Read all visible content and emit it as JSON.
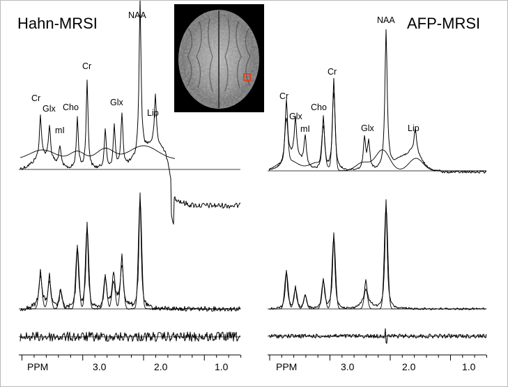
{
  "panels": [
    {
      "title": "Hahn-MRSI",
      "peak_labels": [
        "Cr",
        "Glx",
        "mI",
        "Cho",
        "Cr",
        "Glx",
        "NAA",
        "Lip"
      ],
      "axis": {
        "unit_label": "PPM",
        "tick_labels": [
          "3.0",
          "2.0",
          "1.0"
        ]
      }
    },
    {
      "title": "AFP-MRSI",
      "peak_labels": [
        "Cr",
        "Glx",
        "mI",
        "Cho",
        "Cr",
        "Glx",
        "NAA",
        "Lip"
      ],
      "axis": {
        "unit_label": "PPM",
        "tick_labels": [
          "3.0",
          "2.0",
          "1.0"
        ]
      }
    }
  ],
  "mri_inset": {
    "roi_color": "#e8401c"
  },
  "colors": {
    "line": "#000000",
    "frame": "#b9b9b9"
  }
}
